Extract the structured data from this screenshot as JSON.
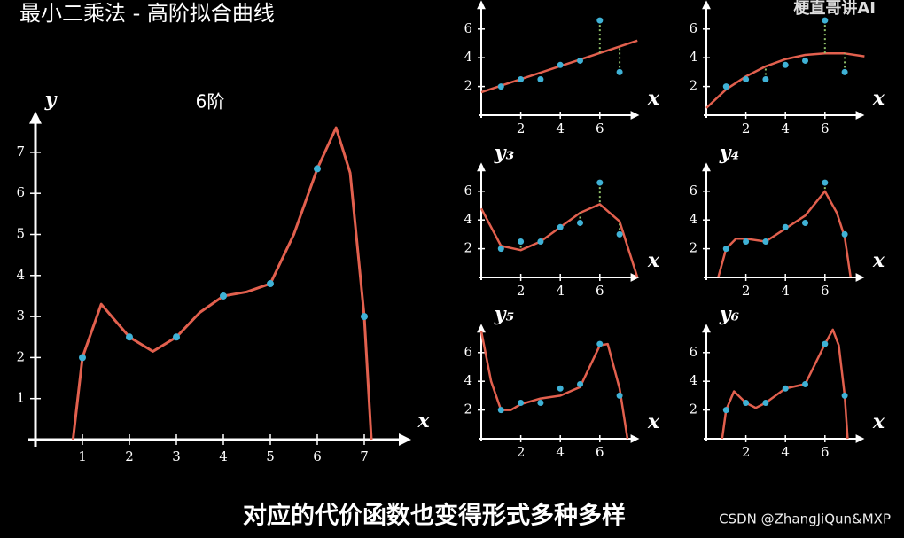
{
  "title": "最小二乘法 - 高阶拟合曲线",
  "watermark": "梗直哥讲AI",
  "caption": "对应的代价函数也变得形式多种多样",
  "credit": "CSDN @ZhangJiQun&MXP",
  "chart_data": [
    {
      "type": "line",
      "title": "6阶",
      "xlabel": "x",
      "ylabel": "y",
      "xlim": [
        0,
        8
      ],
      "ylim": [
        0,
        8
      ],
      "xticks": [
        1,
        2,
        3,
        4,
        5,
        6,
        7
      ],
      "yticks": [
        1,
        2,
        3,
        4,
        5,
        6,
        7
      ],
      "points": {
        "color": "#3fb2d6",
        "x": [
          1,
          2,
          3,
          4,
          5,
          6,
          7
        ],
        "values": [
          2,
          2.5,
          2.5,
          3.5,
          3.8,
          6.6,
          3
        ]
      },
      "curve": {
        "color": "#e2604e",
        "x": [
          0.8,
          1,
          1.4,
          2,
          2.5,
          3,
          3.5,
          4,
          4.5,
          5,
          5.5,
          6,
          6.4,
          6.7,
          7,
          7.15
        ],
        "values": [
          0,
          2,
          3.3,
          2.5,
          2.15,
          2.5,
          3.1,
          3.5,
          3.6,
          3.8,
          5,
          6.6,
          7.6,
          6.5,
          3,
          0
        ]
      }
    },
    {
      "type": "line",
      "xlabel": "x",
      "xlim": [
        0,
        8
      ],
      "ylim": [
        0,
        8
      ],
      "xticks": [
        2,
        4,
        6
      ],
      "yticks": [
        2,
        4,
        6
      ],
      "points": {
        "color": "#3fb2d6",
        "x": [
          1,
          2,
          3,
          4,
          5,
          6,
          7
        ],
        "values": [
          2,
          2.5,
          2.5,
          3.5,
          3.8,
          6.6,
          3
        ]
      },
      "curve": {
        "color": "#e2604e",
        "x": [
          0,
          7.9
        ],
        "values": [
          1.6,
          5.2
        ]
      }
    },
    {
      "type": "line",
      "xlabel": "x",
      "xlim": [
        0,
        8
      ],
      "ylim": [
        0,
        8
      ],
      "xticks": [
        2,
        4,
        6
      ],
      "yticks": [
        2,
        4,
        6
      ],
      "points": {
        "color": "#3fb2d6",
        "x": [
          1,
          2,
          3,
          4,
          5,
          6,
          7
        ],
        "values": [
          2,
          2.5,
          2.5,
          3.5,
          3.8,
          6.6,
          3
        ]
      },
      "curve": {
        "color": "#e2604e",
        "x": [
          0,
          1,
          2,
          3,
          4,
          5,
          6,
          7,
          8
        ],
        "values": [
          0.5,
          1.8,
          2.7,
          3.4,
          3.9,
          4.2,
          4.3,
          4.3,
          4.1
        ]
      }
    },
    {
      "type": "line",
      "xlabel": "x",
      "ylabel": "y₃",
      "xlim": [
        0,
        8
      ],
      "ylim": [
        0,
        8
      ],
      "xticks": [
        2,
        4,
        6
      ],
      "yticks": [
        2,
        4,
        6
      ],
      "points": {
        "color": "#3fb2d6",
        "x": [
          1,
          2,
          3,
          4,
          5,
          6,
          7
        ],
        "values": [
          2,
          2.5,
          2.5,
          3.5,
          3.8,
          6.6,
          3
        ]
      },
      "curve": {
        "color": "#e2604e",
        "x": [
          0,
          1,
          2,
          3,
          4,
          5,
          6,
          7,
          7.9
        ],
        "values": [
          4.8,
          2.2,
          1.9,
          2.5,
          3.5,
          4.5,
          5.1,
          3.9,
          0
        ]
      }
    },
    {
      "type": "line",
      "xlabel": "x",
      "ylabel": "y₄",
      "xlim": [
        0,
        8
      ],
      "ylim": [
        0,
        8
      ],
      "xticks": [
        2,
        4,
        6
      ],
      "yticks": [
        2,
        4,
        6
      ],
      "points": {
        "color": "#3fb2d6",
        "x": [
          1,
          2,
          3,
          4,
          5,
          6,
          7
        ],
        "values": [
          2,
          2.5,
          2.5,
          3.5,
          3.8,
          6.6,
          3
        ]
      },
      "curve": {
        "color": "#e2604e",
        "x": [
          0.6,
          1,
          1.5,
          2,
          3,
          4,
          5,
          6,
          6.6,
          7,
          7.3
        ],
        "values": [
          0,
          2,
          2.7,
          2.7,
          2.5,
          3.4,
          4.3,
          6,
          4.5,
          2.8,
          0
        ]
      }
    },
    {
      "type": "line",
      "xlabel": "x",
      "ylabel": "y₅",
      "xlim": [
        0,
        8
      ],
      "ylim": [
        0,
        8
      ],
      "xticks": [
        2,
        4,
        6
      ],
      "yticks": [
        2,
        4,
        6
      ],
      "points": {
        "color": "#3fb2d6",
        "x": [
          1,
          2,
          3,
          4,
          5,
          6,
          7
        ],
        "values": [
          2,
          2.5,
          2.5,
          3.5,
          3.8,
          6.6,
          3
        ]
      },
      "curve": {
        "color": "#e2604e",
        "x": [
          0,
          0.5,
          1,
          1.5,
          2,
          3,
          4,
          5,
          6,
          6.4,
          7,
          7.4
        ],
        "values": [
          7.5,
          4,
          2,
          2,
          2.4,
          2.8,
          3,
          3.6,
          6.5,
          6.6,
          3.5,
          0
        ]
      }
    },
    {
      "type": "line",
      "xlabel": "x",
      "ylabel": "y₆",
      "xlim": [
        0,
        8
      ],
      "ylim": [
        0,
        8
      ],
      "xticks": [
        2,
        4,
        6
      ],
      "yticks": [
        2,
        4,
        6
      ],
      "points": {
        "color": "#3fb2d6",
        "x": [
          1,
          2,
          3,
          4,
          5,
          6,
          7
        ],
        "values": [
          2,
          2.5,
          2.5,
          3.5,
          3.8,
          6.6,
          3
        ]
      },
      "curve": {
        "color": "#e2604e",
        "x": [
          0.8,
          1,
          1.4,
          2,
          2.5,
          3,
          4,
          5,
          6,
          6.4,
          6.7,
          7,
          7.15
        ],
        "values": [
          0,
          2,
          3.3,
          2.5,
          2.15,
          2.5,
          3.5,
          3.8,
          6.6,
          7.6,
          6.5,
          3,
          0
        ]
      }
    }
  ]
}
